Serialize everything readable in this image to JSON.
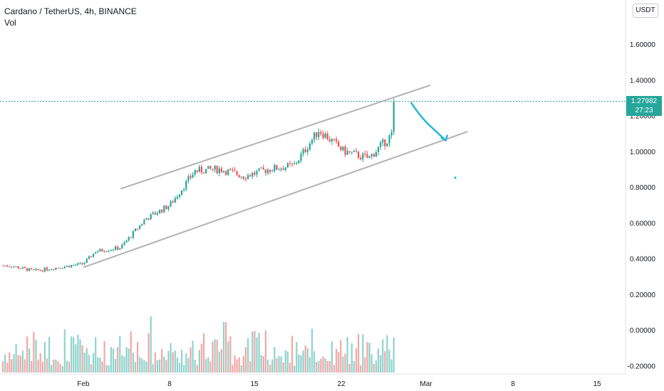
{
  "header": {
    "title": "Cardano / TetherUS, 4h, BINANCE",
    "indicator": "Vol"
  },
  "currency_button": "USDT",
  "last_price": {
    "value": "1.27982",
    "countdown": "27:23"
  },
  "colors": {
    "up": "#26a69a",
    "down": "#ef5350",
    "vol_up": "#8fd3cc",
    "vol_down": "#f4a7a5",
    "channel": "#b2b2b2",
    "drawing": "#22b8cf",
    "price_line": "#26a69a"
  },
  "icons": [
    "cyan-dot-marker"
  ],
  "chart_data": {
    "type": "candlestick",
    "title": "Cardano / TetherUS, 4h, BINANCE",
    "y_axis": {
      "ticks": [
        1.6,
        1.4,
        1.2,
        1.0,
        0.8,
        0.6,
        0.4,
        0.2,
        0.0,
        -0.2
      ],
      "tick_labels": [
        "1.60000",
        "1.40000",
        "1.20000",
        "1.00000",
        "0.80000",
        "0.60000",
        "0.40000",
        "0.20000",
        "0.00000",
        "-0.20000"
      ],
      "range": [
        -0.25,
        1.8
      ]
    },
    "x_axis": {
      "ticks": [
        "Feb",
        "8",
        "15",
        "22",
        "Mar",
        "8",
        "15"
      ]
    },
    "price_anchors": [
      [
        "Jan 26",
        0.36
      ],
      [
        "Jan 28",
        0.33
      ],
      [
        "Jan 30",
        0.35
      ],
      [
        "Feb 1",
        0.37
      ],
      [
        "Feb 2",
        0.44
      ],
      [
        "Feb 4",
        0.46
      ],
      [
        "Feb 6",
        0.62
      ],
      [
        "Feb 8",
        0.7
      ],
      [
        "Feb 10",
        0.89
      ],
      [
        "Feb 12",
        0.9
      ],
      [
        "Feb 14",
        0.86
      ],
      [
        "Feb 16",
        0.9
      ],
      [
        "Feb 18",
        0.92
      ],
      [
        "Feb 20",
        1.12
      ],
      [
        "Feb 22",
        1.0
      ],
      [
        "Feb 24",
        0.96
      ],
      [
        "Feb 26",
        1.1
      ],
      [
        "Feb 27",
        1.27982
      ]
    ],
    "channel": {
      "upper": [
        [
          "Feb 4",
          0.79
        ],
        [
          "Mar 1",
          1.37
        ]
      ],
      "lower": [
        [
          "Feb 1",
          0.35
        ],
        [
          "Mar 4",
          1.11
        ]
      ]
    },
    "projection_arrow": {
      "from": [
        "Feb 27",
        1.27
      ],
      "to": [
        "Mar 2",
        1.06
      ]
    },
    "last_value": 1.27982
  }
}
